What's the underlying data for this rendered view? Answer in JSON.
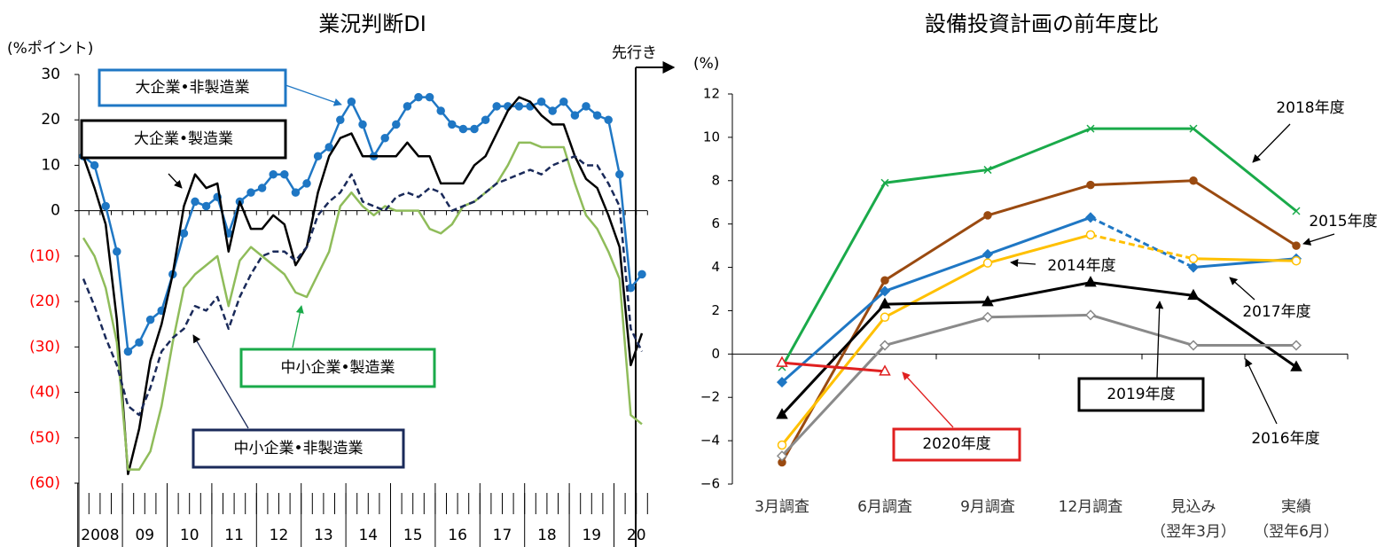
{
  "chart_data": [
    {
      "type": "line",
      "title": "業況判断DI",
      "y_label": "(%ポイント)",
      "annotation": "先行き",
      "categories": [
        null,
        null,
        null,
        null,
        null,
        null,
        null,
        null,
        null,
        null,
        null,
        null,
        null,
        null,
        null,
        null,
        null,
        null,
        null,
        null,
        null,
        null,
        null,
        null,
        null,
        null,
        null,
        null,
        null,
        null,
        null,
        null,
        null,
        null,
        null,
        null,
        null,
        null,
        null,
        null,
        null,
        null,
        null,
        null,
        null,
        null,
        null,
        null,
        null,
        null,
        null
      ],
      "x_group_labels": [
        "2008",
        "09",
        "10",
        "11",
        "12",
        "13",
        "14",
        "15",
        "16",
        "17",
        "18",
        "19",
        "20"
      ],
      "ylim": [
        -60,
        30
      ],
      "yticks": [
        30,
        20,
        10,
        0,
        {
          "value": -10,
          "label": "(10)"
        },
        {
          "value": -20,
          "label": "(20)"
        },
        {
          "value": -30,
          "label": "(30)"
        },
        {
          "value": -40,
          "label": "(40)"
        },
        {
          "value": -50,
          "label": "(50)"
        },
        {
          "value": -60,
          "label": "(60)"
        }
      ],
      "negative_label_color": "#ff0000",
      "series": [
        {
          "name": "大企業•非製造業",
          "color": "#1f77c4",
          "marker": "circle",
          "dash": false,
          "values": [
            12,
            10,
            1,
            -9,
            -31,
            -29,
            -24,
            -22,
            -14,
            -5,
            2,
            1,
            3,
            -5,
            2,
            4,
            5,
            8,
            8,
            4,
            6,
            12,
            14,
            20,
            24,
            19,
            12,
            16,
            19,
            23,
            25,
            25,
            22,
            19,
            18,
            18,
            20,
            23,
            23,
            23,
            23,
            24,
            22,
            24,
            21,
            23,
            21,
            20,
            8,
            -17,
            -14
          ]
        },
        {
          "name": "大企業•製造業",
          "color": "#000000",
          "marker": "none",
          "dash": false,
          "values": [
            12,
            5,
            -3,
            -24,
            -58,
            -48,
            -33,
            -25,
            -14,
            1,
            8,
            5,
            6,
            -9,
            2,
            -4,
            -4,
            -1,
            -3,
            -12,
            -8,
            4,
            12,
            16,
            17,
            12,
            12,
            12,
            12,
            15,
            12,
            12,
            6,
            6,
            6,
            10,
            12,
            17,
            22,
            25,
            24,
            21,
            19,
            19,
            12,
            7,
            5,
            -1,
            -8,
            -34,
            -27
          ]
        },
        {
          "name": "中小企業•製造業",
          "color": "#8fbc5a",
          "marker": "none",
          "dash": false,
          "values": [
            -6,
            -10,
            -17,
            -29,
            -57,
            -57,
            -53,
            -43,
            -29,
            -17,
            -14,
            -12,
            -10,
            -21,
            -11,
            -8,
            -10,
            -12,
            -14,
            -18,
            -19,
            -14,
            -9,
            1,
            4,
            1,
            -1,
            1,
            0,
            0,
            0,
            -4,
            -5,
            -3,
            1,
            2,
            4,
            6,
            10,
            15,
            15,
            14,
            14,
            14,
            6,
            -1,
            -4,
            -9,
            -15,
            -45,
            -47
          ]
        },
        {
          "name": "中小企業•非製造業",
          "color": "#1a2a5a",
          "marker": "none",
          "dash": true,
          "values": [
            -15,
            -21,
            -28,
            -34,
            -43,
            -45,
            -39,
            -31,
            -28,
            -26,
            -21,
            -22,
            -19,
            -26,
            -19,
            -14,
            -10,
            -9,
            -9,
            -11,
            -8,
            -1,
            2,
            4,
            8,
            2,
            1,
            0,
            3,
            4,
            3,
            5,
            4,
            0,
            1,
            2,
            4,
            6,
            7,
            8,
            9,
            8,
            10,
            11,
            12,
            10,
            10,
            6,
            1,
            -26,
            -31
          ]
        }
      ]
    },
    {
      "type": "line",
      "title": "設備投資計画の前年度比",
      "y_label": "(%)",
      "categories": [
        "3月調査",
        "6月調査",
        "9月調査",
        "12月調査",
        "見込み\n（翌年3月）",
        "実績\n（翌年6月）"
      ],
      "ylim": [
        -6,
        12
      ],
      "yticks": [
        {
          "value": -6,
          "label": "−6"
        },
        {
          "value": -4,
          "label": "−4"
        },
        {
          "value": -2,
          "label": "−2"
        },
        0,
        2,
        4,
        6,
        8,
        10,
        12
      ],
      "series": [
        {
          "name": "2018年度",
          "color": "#1aaa4a",
          "marker": "x",
          "dashed_segments": [],
          "values": [
            -0.6,
            7.9,
            8.5,
            10.4,
            10.4,
            6.6
          ]
        },
        {
          "name": "2015年度",
          "color": "#9a4a10",
          "marker": "circle",
          "dashed_segments": [],
          "values": [
            -5.0,
            3.4,
            6.4,
            7.8,
            8.0,
            5.0
          ]
        },
        {
          "name": "2014年度",
          "color": "#1f77c4",
          "marker": "diamond",
          "dashed_segments": [
            3
          ],
          "values": [
            -1.3,
            2.9,
            4.6,
            6.3,
            4.0,
            4.4
          ]
        },
        {
          "name": "2017年度",
          "color": "#ffc000",
          "marker": "open-circle",
          "dashed_segments": [
            3
          ],
          "values": [
            -4.2,
            1.7,
            4.2,
            5.5,
            4.4,
            4.3
          ]
        },
        {
          "name": "2019年度",
          "color": "#000000",
          "marker": "triangle",
          "dashed_segments": [],
          "values": [
            -2.8,
            2.3,
            2.4,
            3.3,
            2.7,
            -0.6
          ]
        },
        {
          "name": "2016年度",
          "color": "#8a8a8a",
          "marker": "open-diamond",
          "dashed_segments": [],
          "values": [
            -4.7,
            0.4,
            1.7,
            1.8,
            0.4,
            0.4
          ]
        },
        {
          "name": "2020年度",
          "color": "#e02020",
          "marker": "open-triangle",
          "dashed_segments": [],
          "values": [
            -0.4,
            -0.8,
            null,
            null,
            null,
            null
          ]
        }
      ]
    }
  ]
}
